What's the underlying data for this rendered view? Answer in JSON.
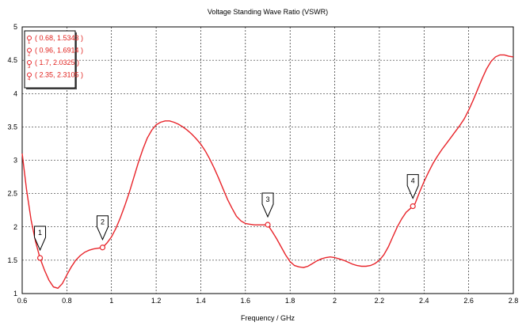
{
  "chart_data": {
    "type": "line",
    "title": "Voltage Standing Wave Ratio (VSWR)",
    "xlabel": "Frequency / GHz",
    "ylabel": "",
    "xlim": [
      0.6,
      2.8
    ],
    "ylim": [
      1,
      5
    ],
    "x_ticks": [
      "0.6",
      "0.8",
      "1",
      "1.2",
      "1.4",
      "1.6",
      "1.8",
      "2",
      "2.2",
      "2.4",
      "2.6",
      "2.8"
    ],
    "y_ticks": [
      "1",
      "1.5",
      "2",
      "2.5",
      "3",
      "3.5",
      "4",
      "4.5",
      "5"
    ],
    "grid": true,
    "legend_position": "top-left",
    "series_color": "#e8242a",
    "series": [
      {
        "x": [
          0.6,
          0.62,
          0.64,
          0.66,
          0.68,
          0.7,
          0.72,
          0.74,
          0.76,
          0.78,
          0.8,
          0.82,
          0.84,
          0.86,
          0.88,
          0.9,
          0.92,
          0.94,
          0.96,
          0.98,
          1.0,
          1.02,
          1.04,
          1.06,
          1.08,
          1.1,
          1.12,
          1.14,
          1.16,
          1.18,
          1.2,
          1.22,
          1.24,
          1.26,
          1.28,
          1.3,
          1.32,
          1.34,
          1.36,
          1.38,
          1.4,
          1.42,
          1.44,
          1.46,
          1.48,
          1.5,
          1.52,
          1.54,
          1.56,
          1.58,
          1.6,
          1.62,
          1.64,
          1.66,
          1.68,
          1.7,
          1.72,
          1.74,
          1.76,
          1.78,
          1.8,
          1.82,
          1.84,
          1.86,
          1.88,
          1.9,
          1.92,
          1.94,
          1.96,
          1.98,
          2.0,
          2.02,
          2.04,
          2.06,
          2.08,
          2.1,
          2.12,
          2.14,
          2.16,
          2.18,
          2.2,
          2.22,
          2.24,
          2.26,
          2.28,
          2.3,
          2.32,
          2.34,
          2.35,
          2.36,
          2.38,
          2.4,
          2.42,
          2.44,
          2.46,
          2.48,
          2.5,
          2.52,
          2.54,
          2.56,
          2.58,
          2.6,
          2.62,
          2.64,
          2.66,
          2.68,
          2.7,
          2.72,
          2.74,
          2.76,
          2.78,
          2.8
        ],
        "values": [
          3.1,
          2.55,
          2.1,
          1.78,
          1.53,
          1.35,
          1.2,
          1.1,
          1.08,
          1.15,
          1.28,
          1.4,
          1.5,
          1.57,
          1.62,
          1.65,
          1.67,
          1.68,
          1.69,
          1.76,
          1.85,
          1.98,
          2.14,
          2.32,
          2.52,
          2.74,
          2.96,
          3.16,
          3.33,
          3.45,
          3.53,
          3.57,
          3.59,
          3.59,
          3.57,
          3.54,
          3.5,
          3.45,
          3.39,
          3.32,
          3.24,
          3.14,
          3.02,
          2.88,
          2.73,
          2.57,
          2.41,
          2.28,
          2.16,
          2.09,
          2.05,
          2.04,
          2.03,
          2.03,
          2.03,
          2.03,
          1.93,
          1.82,
          1.7,
          1.58,
          1.48,
          1.42,
          1.4,
          1.39,
          1.41,
          1.45,
          1.49,
          1.52,
          1.54,
          1.55,
          1.54,
          1.52,
          1.5,
          1.47,
          1.44,
          1.42,
          1.41,
          1.41,
          1.42,
          1.45,
          1.5,
          1.58,
          1.7,
          1.85,
          2.0,
          2.12,
          2.22,
          2.28,
          2.31,
          2.35,
          2.52,
          2.68,
          2.82,
          2.95,
          3.06,
          3.16,
          3.25,
          3.34,
          3.43,
          3.52,
          3.62,
          3.75,
          3.9,
          4.06,
          4.22,
          4.37,
          4.48,
          4.55,
          4.58,
          4.58,
          4.56,
          4.55
        ]
      }
    ],
    "markers": [
      {
        "label": "1",
        "x": 0.68,
        "y": 1.5343,
        "text": "( 0.68, 1.5343 )"
      },
      {
        "label": "2",
        "x": 0.96,
        "y": 1.6914,
        "text": "( 0.96, 1.6914 )"
      },
      {
        "label": "3",
        "x": 1.7,
        "y": 2.0325,
        "text": "( 1.7, 2.0325 )"
      },
      {
        "label": "4",
        "x": 2.35,
        "y": 2.3105,
        "text": "( 2.35, 2.3105 )"
      }
    ]
  }
}
